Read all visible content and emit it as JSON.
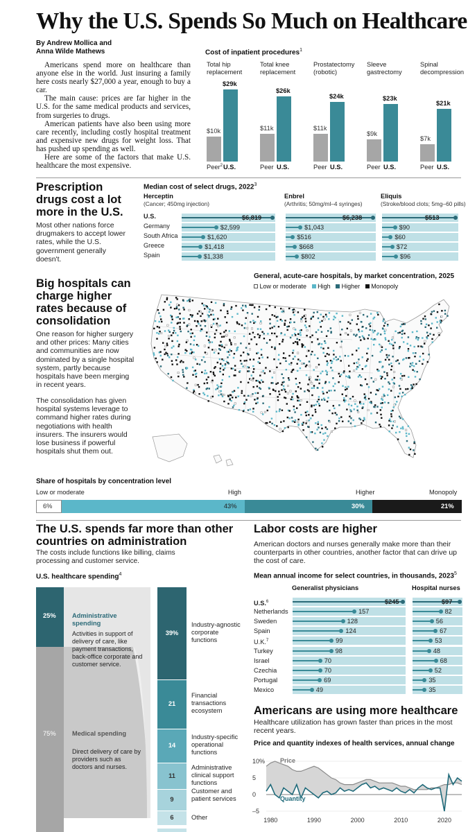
{
  "title": "Why the U.S. Spends So Much on Healthcare",
  "byline": [
    "By Andrew Mollica and",
    "Anna Wilde Mathews"
  ],
  "intro": [
    "Americans spend more on healthcare than anyone else in the world. Just insuring a family here costs nearly $27,000 a year, enough to buy a car.",
    "The main cause: prices are far higher in the U.S. for the same medical products and services, from surgeries to drugs.",
    "American patients have also been using more care recently, including costly hospital treatment and expensive new drugs for weight loss. That has pushed up spending as well.",
    "Here are some of the factors that make U.S. healthcare the most expensive."
  ],
  "colors": {
    "teal": "#3a8a97",
    "grey": "#a6a6a6",
    "light_teal": "#bfe0e6",
    "dark_teal": "#2b6a78",
    "mid_teal": "#5bb7c9",
    "black": "#1a1a1a"
  },
  "procedures": {
    "title": "Cost of inpatient procedures",
    "title_sup": "1",
    "peer_label": "Peer",
    "peer_sup": "2",
    "us_label": "U.S.",
    "items": [
      {
        "name_l1": "Total hip",
        "name_l2": "replacement",
        "peer": 10,
        "us": 29,
        "peer_label": "$10k",
        "us_label": "$29k"
      },
      {
        "name_l1": "Total knee",
        "name_l2": "replacement",
        "peer": 11,
        "us": 26,
        "peer_label": "$11k",
        "us_label": "$26k"
      },
      {
        "name_l1": "Prostatectomy",
        "name_l2": "(robotic)",
        "peer": 11,
        "us": 24,
        "peer_label": "$11k",
        "us_label": "$24k"
      },
      {
        "name_l1": "Sleeve",
        "name_l2": "gastrectomy",
        "peer": 9,
        "us": 23,
        "peer_label": "$9k",
        "us_label": "$23k"
      },
      {
        "name_l1": "Spinal",
        "name_l2": "decompression",
        "peer": 7,
        "us": 21,
        "peer_label": "$7k",
        "us_label": "$21k"
      }
    ]
  },
  "drugs_section": {
    "heading": "Prescription drugs cost a lot more in the U.S.",
    "body": "Most other nations force drugmakers to accept lower rates, while the U.S. government generally doesn't.",
    "chart_title": "Median cost of select drugs, 2022",
    "chart_title_sup": "3",
    "countries": [
      "U.S.",
      "Germany",
      "South Africa",
      "Greece",
      "Spain"
    ],
    "drugs": [
      {
        "name": "Herceptin",
        "note": "(Cancer; 450mg injection)",
        "values": [
          6819,
          2599,
          1620,
          1418,
          1338
        ],
        "labels": [
          "$6,819",
          "$2,599",
          "$1,620",
          "$1,418",
          "$1,338"
        ]
      },
      {
        "name": "Enbrel",
        "note": "(Arthritis; 50mg/ml–4 syringes)",
        "values": [
          6238,
          1043,
          516,
          668,
          802
        ],
        "labels": [
          "$6,238",
          "$1,043",
          "$516",
          "$668",
          "$802"
        ]
      },
      {
        "name": "Eliquis",
        "note": "(Stroke/blood clots; 5mg–60 pills)",
        "values": [
          513,
          90,
          60,
          72,
          96
        ],
        "labels": [
          "$513",
          "$90",
          "$60",
          "$72",
          "$96"
        ]
      }
    ]
  },
  "hospitals_section": {
    "heading": "Big hospitals can charge higher rates because of consolidation",
    "body1": "One reason for higher surgery and other prices: Many cities and communities are now dominated by a single hospital system, partly because hospitals have been merging in recent years.",
    "body2": "The consolidation has given hospital systems leverage to command higher rates during negotiations with health insurers. The insurers would lose business if powerful hospitals shut them out.",
    "map_title": "General, acute-care hospitals, by market concentration, 2025",
    "legend": [
      "Low or moderate",
      "High",
      "Higher",
      "Monopoly"
    ],
    "share_title": "Share of hospitals by concentration level",
    "share_levels": [
      "Low or moderate",
      "High",
      "Higher",
      "Monopoly"
    ],
    "share_values": [
      6,
      43,
      30,
      21
    ],
    "share_labels": [
      "6%",
      "43%",
      "30%",
      "21%"
    ]
  },
  "admin_section": {
    "heading": "The U.S. spends far more than other countries on administration",
    "body": "The costs include functions like billing, claims processing and customer service.",
    "chart_title": "U.S. healthcare spending",
    "chart_title_sup": "4",
    "admin_pct": "25%",
    "admin_label": "Administrative spending",
    "admin_desc": "Activities in support of delivery of care, like payment transactions, back-office corporate and customer service.",
    "medical_pct": "75%",
    "medical_label": "Medical spending",
    "medical_desc": "Direct delivery of care by providers such as doctors and nurses.",
    "breakdown": [
      {
        "value": "39%",
        "label": "Industry-agnostic corporate functions"
      },
      {
        "value": "21",
        "label": "Financial transactions ecosystem"
      },
      {
        "value": "14",
        "label": "Industry-specific operational functions"
      },
      {
        "value": "11",
        "label": "Administrative clinical support functions"
      },
      {
        "value": "9",
        "label": "Customer and patient services"
      },
      {
        "value": "6",
        "label": "Other"
      }
    ]
  },
  "labor_section": {
    "heading": "Labor costs are higher",
    "body": "American doctors and nurses generally make more than their counterparts in other countries, another factor that can drive up the cost of care.",
    "chart_title": "Mean annual income for select countries, in thousands, 2023",
    "chart_title_sup": "5",
    "col1": "Generalist physicians",
    "col2": "Hospital nurses",
    "countries": [
      "U.S.",
      "Netherlands",
      "Sweden",
      "Spain",
      "U.K.",
      "Turkey",
      "Israel",
      "Czechia",
      "Portugal",
      "Mexico"
    ],
    "country_sups": [
      "6",
      "",
      "",
      "",
      "7",
      "",
      "",
      "",
      "",
      ""
    ],
    "physicians": [
      245,
      157,
      128,
      124,
      99,
      98,
      70,
      70,
      69,
      49
    ],
    "physician_labels": [
      "$245",
      "157",
      "128",
      "124",
      "99",
      "98",
      "70",
      "70",
      "69",
      "49"
    ],
    "nurses": [
      97,
      82,
      56,
      67,
      53,
      48,
      68,
      52,
      35,
      35
    ],
    "nurse_labels": [
      "$97",
      "82",
      "56",
      "67",
      "53",
      "48",
      "68",
      "52",
      "35",
      "35"
    ]
  },
  "utilization_section": {
    "heading": "Americans are using more healthcare",
    "body": "Healthcare utilization has grown faster than prices in the most recent years.",
    "chart_title": "Price and quantity indexes of health services, annual change",
    "y_ticks": [
      "10%",
      "5",
      "0",
      "–5"
    ],
    "x_ticks": [
      "1980",
      "1990",
      "2000",
      "2010",
      "2020"
    ],
    "price_label": "Price",
    "quantity_label": "Quantity"
  },
  "chart_data": [
    {
      "type": "bar",
      "title": "Cost of inpatient procedures",
      "categories": [
        "Total hip replacement",
        "Total knee replacement",
        "Prostatectomy (robotic)",
        "Sleeve gastrectomy",
        "Spinal decompression"
      ],
      "series": [
        {
          "name": "Peer",
          "values": [
            10,
            11,
            11,
            9,
            7
          ]
        },
        {
          "name": "U.S.",
          "values": [
            29,
            26,
            24,
            23,
            21
          ]
        }
      ],
      "unit": "$k"
    },
    {
      "type": "bar",
      "title": "Median cost of select drugs, 2022",
      "categories": [
        "U.S.",
        "Germany",
        "South Africa",
        "Greece",
        "Spain"
      ],
      "series": [
        {
          "name": "Herceptin",
          "values": [
            6819,
            2599,
            1620,
            1418,
            1338
          ]
        },
        {
          "name": "Enbrel",
          "values": [
            6238,
            1043,
            516,
            668,
            802
          ]
        },
        {
          "name": "Eliquis",
          "values": [
            513,
            90,
            60,
            72,
            96
          ]
        }
      ]
    },
    {
      "type": "bar",
      "title": "Share of hospitals by concentration level",
      "categories": [
        "Low or moderate",
        "High",
        "Higher",
        "Monopoly"
      ],
      "values": [
        6,
        43,
        30,
        21
      ]
    },
    {
      "type": "bar",
      "title": "Mean annual income for select countries, in thousands, 2023",
      "categories": [
        "U.S.",
        "Netherlands",
        "Sweden",
        "Spain",
        "U.K.",
        "Turkey",
        "Israel",
        "Czechia",
        "Portugal",
        "Mexico"
      ],
      "series": [
        {
          "name": "Generalist physicians",
          "values": [
            245,
            157,
            128,
            124,
            99,
            98,
            70,
            70,
            69,
            49
          ]
        },
        {
          "name": "Hospital nurses",
          "values": [
            97,
            82,
            56,
            67,
            53,
            48,
            68,
            52,
            35,
            35
          ]
        }
      ]
    },
    {
      "type": "line",
      "title": "Price and quantity indexes of health services, annual change",
      "ylim": [
        -5,
        10
      ],
      "x": [
        1979,
        1980,
        1981,
        1982,
        1983,
        1984,
        1985,
        1986,
        1987,
        1988,
        1989,
        1990,
        1991,
        1992,
        1993,
        1994,
        1995,
        1996,
        1997,
        1998,
        1999,
        2000,
        2001,
        2002,
        2003,
        2004,
        2005,
        2006,
        2007,
        2008,
        2009,
        2010,
        2011,
        2012,
        2013,
        2014,
        2015,
        2016,
        2017,
        2018,
        2019,
        2020,
        2021,
        2022,
        2023,
        2024
      ],
      "series": [
        {
          "name": "Price",
          "values": [
            8.5,
            9.5,
            10,
            9.5,
            9,
            8.5,
            7.5,
            7,
            7,
            7.5,
            8,
            8.5,
            8,
            7,
            6,
            5,
            4.5,
            3.5,
            3,
            3,
            3,
            3.5,
            4,
            4.5,
            4.5,
            4,
            3.5,
            3.5,
            3.5,
            3.5,
            3,
            2.5,
            2.5,
            2,
            1.5,
            1.5,
            1.5,
            1.5,
            2,
            2,
            2.5,
            3,
            3,
            3.5,
            3.5,
            3
          ]
        },
        {
          "name": "Quantity",
          "values": [
            1,
            3,
            0,
            -1,
            2,
            1,
            0,
            3,
            -1,
            2,
            1,
            0,
            -1,
            0.5,
            1,
            0,
            0.5,
            2,
            1,
            1.5,
            1,
            2,
            3,
            3.5,
            2,
            2.5,
            1.5,
            2,
            1.5,
            1,
            2,
            1,
            0.5,
            1.5,
            0.5,
            2,
            3,
            2,
            1.5,
            2,
            2,
            -5,
            6,
            3,
            5,
            4
          ]
        }
      ]
    }
  ]
}
